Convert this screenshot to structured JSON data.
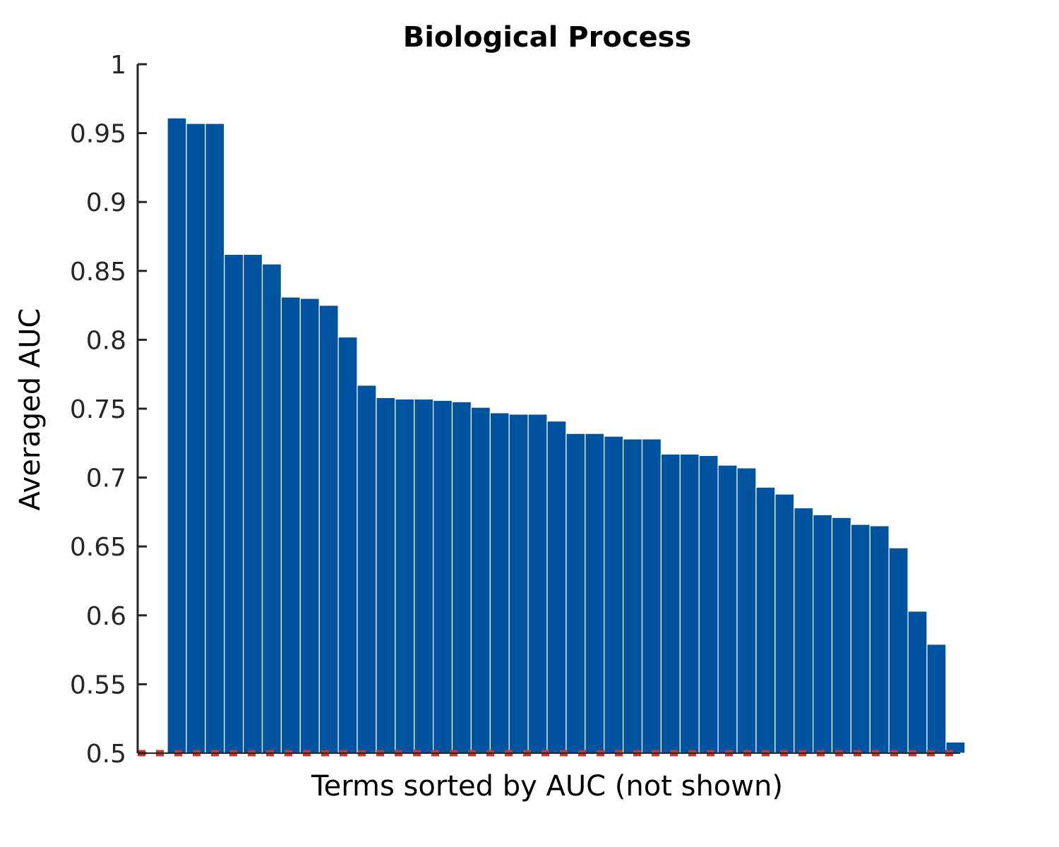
{
  "chart_data": {
    "type": "bar",
    "title": "Biological Process",
    "xlabel": "Terms sorted by AUC (not shown)",
    "ylabel": "Averaged AUC",
    "ylim": [
      0.5,
      1.0
    ],
    "yticks": [
      0.5,
      0.55,
      0.6,
      0.65,
      0.7,
      0.75,
      0.8,
      0.85,
      0.9,
      0.95,
      1
    ],
    "ytick_labels": [
      "0.5",
      "0.55",
      "0.6",
      "0.65",
      "0.7",
      "0.75",
      "0.8",
      "0.85",
      "0.9",
      "0.95",
      "1"
    ],
    "grid": false,
    "bar_color": "#00539f",
    "baseline": {
      "value": 0.5,
      "style": "dotted",
      "color": "#cc3333"
    },
    "values": [
      0.961,
      0.957,
      0.957,
      0.862,
      0.862,
      0.855,
      0.831,
      0.83,
      0.825,
      0.802,
      0.767,
      0.758,
      0.757,
      0.757,
      0.756,
      0.755,
      0.751,
      0.747,
      0.746,
      0.746,
      0.741,
      0.732,
      0.732,
      0.73,
      0.728,
      0.728,
      0.717,
      0.717,
      0.716,
      0.709,
      0.707,
      0.693,
      0.688,
      0.678,
      0.673,
      0.671,
      0.666,
      0.665,
      0.649,
      0.603,
      0.579,
      0.508
    ]
  }
}
